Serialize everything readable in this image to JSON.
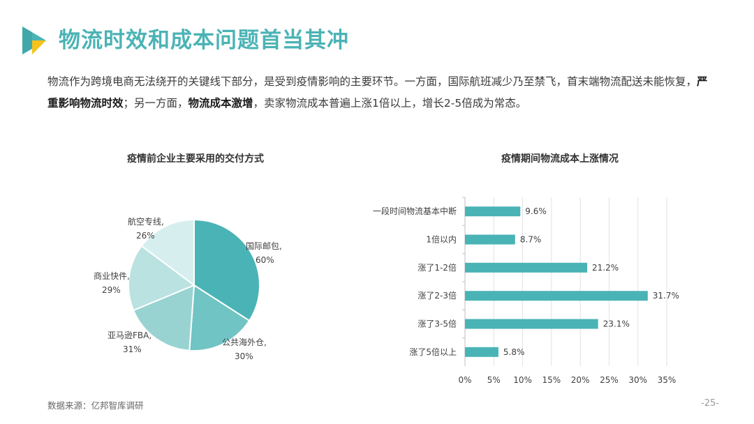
{
  "header": {
    "title": "物流时效和成本问题首当其冲"
  },
  "description": {
    "part1": "物流作为跨境电商无法绕开的关键线下部分，是受到疫情影响的主要环节。一方面，国际航班减少乃至禁飞，首末端物流配送未能恢复，",
    "bold1": "严重影响物流时效",
    "part2": "；另一方面，",
    "bold2": "物流成本激增",
    "part3": "，卖家物流成本普遍上涨1倍以上，增长2-5倍成为常态。"
  },
  "footer": {
    "source": "数据来源：亿邦智库调研",
    "page": "-25-"
  },
  "colors": {
    "accent": "#4bb3b5",
    "logo_yellow": "#f6c21c"
  },
  "chart_data": [
    {
      "type": "pie",
      "title": "疫情前企业主要采用的交付方式",
      "slices": [
        {
          "label": "国际邮包,",
          "value_label": "60%",
          "value": 60,
          "color": "#4ab3b5"
        },
        {
          "label": "公共海外仓,",
          "value_label": "30%",
          "value": 30,
          "color": "#70c4c3"
        },
        {
          "label": "亚马逊FBA,",
          "value_label": "31%",
          "value": 31,
          "color": "#98d3d2"
        },
        {
          "label": "商业快件,",
          "value_label": "29%",
          "value": 29,
          "color": "#b9e2e1"
        },
        {
          "label": "航空专线,",
          "value_label": "26%",
          "value": 26,
          "color": "#d6eeee"
        }
      ]
    },
    {
      "type": "bar",
      "orientation": "horizontal",
      "title": "疫情期间物流成本上涨情况",
      "categories": [
        "一段时间物流基本中断",
        "1倍以内",
        "涨了1-2倍",
        "涨了2-3倍",
        "涨了3-5倍",
        "涨了5倍以上"
      ],
      "values": [
        9.6,
        8.7,
        21.2,
        31.7,
        23.1,
        5.8
      ],
      "value_labels": [
        "9.6%",
        "8.7%",
        "21.2%",
        "31.7%",
        "23.1%",
        "5.8%"
      ],
      "xlim": [
        0,
        35
      ],
      "x_ticks": [
        "0%",
        "5%",
        "10%",
        "15%",
        "20%",
        "25%",
        "30%",
        "35%"
      ],
      "grid": true,
      "color": "#4ab3b5"
    }
  ]
}
